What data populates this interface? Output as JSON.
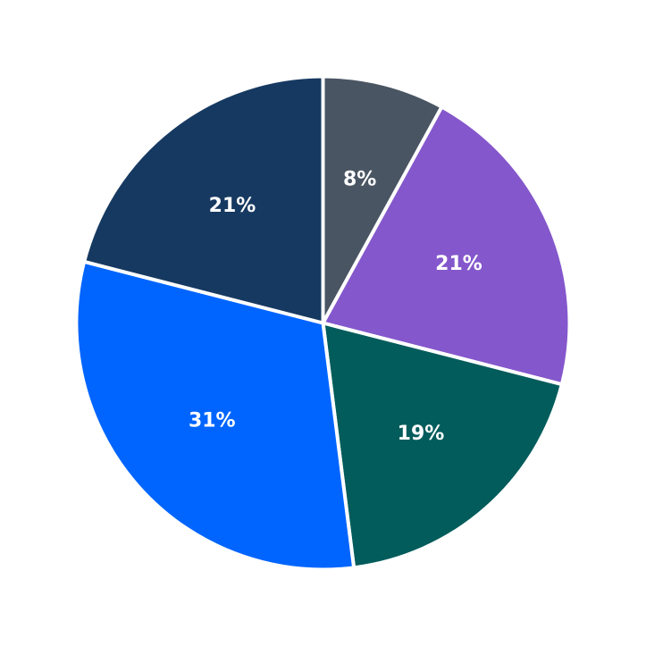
{
  "chart_data": {
    "type": "pie",
    "start_angle": "12 o'clock",
    "direction": "clockwise",
    "slices": [
      {
        "label": "8%",
        "value": 8,
        "color": "#4a5563"
      },
      {
        "label": "21%",
        "value": 21,
        "color": "#8457cc"
      },
      {
        "label": "19%",
        "value": 19,
        "color": "#015c5b"
      },
      {
        "label": "31%",
        "value": 31,
        "color": "#0065ff"
      },
      {
        "label": "21%",
        "value": 21,
        "color": "#163961"
      }
    ]
  }
}
